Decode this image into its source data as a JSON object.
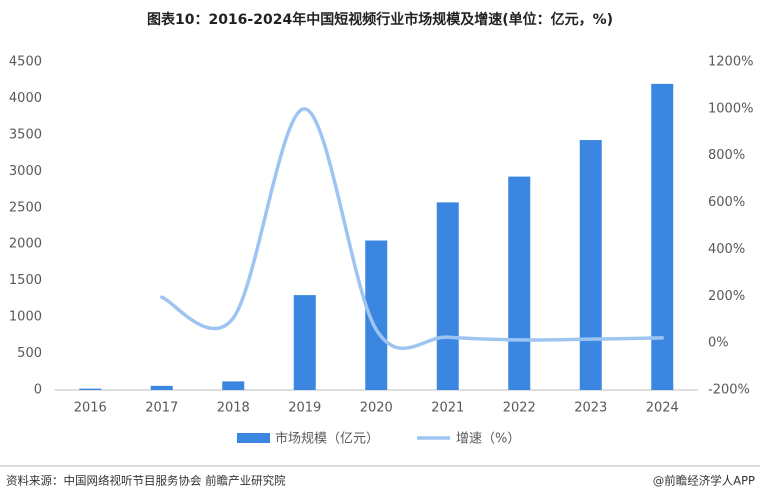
{
  "chart_data": {
    "type": "bar_line",
    "title": "图表10：2016-2024年中国短视频行业市场规模及增速(单位：亿元，%)",
    "categories": [
      "2016",
      "2017",
      "2018",
      "2019",
      "2020",
      "2021",
      "2022",
      "2023",
      "2024"
    ],
    "series": [
      {
        "name": "市场规模（亿元）",
        "type": "bar",
        "color": "#3a86e0",
        "values": [
          19,
          57,
          118,
          1302,
          2051,
          2574,
          2928,
          3429,
          4200
        ]
      },
      {
        "name": "增速（%）",
        "type": "line",
        "axis": "y2",
        "color": "#9ec4f2",
        "values": [
          null,
          196,
          107,
          1000,
          57.5,
          25.5,
          13.8,
          17.1,
          22.5
        ]
      }
    ],
    "ylim": [
      0,
      4500
    ],
    "yticks": [
      0,
      500,
      1000,
      1500,
      2000,
      2500,
      3000,
      3500,
      4000,
      4500
    ],
    "y2lim": [
      -200,
      1200
    ],
    "y2ticks": [
      {
        "value": -200,
        "label": "-200%"
      },
      {
        "value": 0,
        "label": "0%"
      },
      {
        "value": 200,
        "label": "200%"
      },
      {
        "value": 400,
        "label": "400%"
      },
      {
        "value": 600,
        "label": "600%"
      },
      {
        "value": 800,
        "label": "800%"
      },
      {
        "value": 1000,
        "label": "1000%"
      },
      {
        "value": 1200,
        "label": "1200%"
      }
    ],
    "grid": false
  },
  "footer": {
    "source": "资料来源：中国网络视听节目服务协会 前瞻产业研究院",
    "credit": "@前瞻经济学人APP"
  }
}
